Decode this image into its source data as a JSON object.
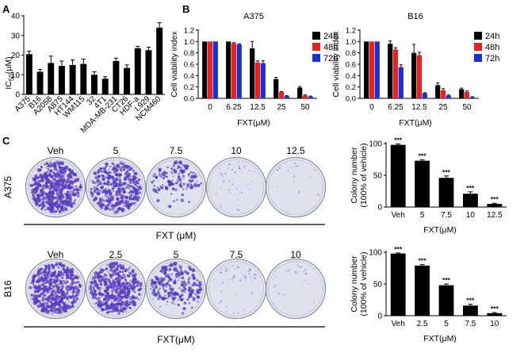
{
  "panel_labels": {
    "a": "A",
    "b": "B",
    "c": "C"
  },
  "chart_data": [
    {
      "id": "ic50",
      "type": "bar",
      "ylabel_main": "IC",
      "ylabel_sub": "50",
      "ylabel_rest": "(μM)",
      "ylim": [
        0,
        40
      ],
      "yticks": [
        "0",
        "10",
        "20",
        "30",
        "40"
      ],
      "categories": [
        "A375",
        "B16",
        "A2058",
        "A875",
        "HT144",
        "WM115",
        "32",
        "4T1",
        "MDA-MB-231",
        "CT26",
        "HDF-a",
        "L929",
        "NCM460"
      ],
      "values": [
        20.5,
        11.5,
        16,
        14.5,
        15,
        15.5,
        10,
        8,
        17,
        13.5,
        23.5,
        22.5,
        34
      ],
      "errors": [
        1.5,
        1.2,
        3.5,
        2.5,
        2.5,
        2.5,
        1.5,
        1,
        1.5,
        1.5,
        1,
        1.5,
        2.5
      ]
    },
    {
      "id": "a375-viability",
      "type": "bar",
      "title": "A375",
      "ylabel": "Cell viability index",
      "xlabel": "FXT(μM)",
      "ylim": [
        0,
        1.2
      ],
      "yticks": [
        "0.0",
        "0.2",
        "0.4",
        "0.6",
        "0.8",
        "1.0",
        "1.2"
      ],
      "categories": [
        "0",
        "6.25",
        "12.5",
        "25",
        "50"
      ],
      "series": [
        {
          "name": "24h",
          "values": [
            1.0,
            1.0,
            0.88,
            0.34,
            0.19
          ],
          "errors": [
            0,
            0,
            0.12,
            0.03,
            0.02
          ]
        },
        {
          "name": "48h",
          "values": [
            1.0,
            0.97,
            0.63,
            0.11,
            0.05
          ],
          "errors": [
            0,
            0.01,
            0.03,
            0.01,
            0.01
          ]
        },
        {
          "name": "72h",
          "values": [
            1.0,
            0.95,
            0.62,
            0.04,
            0.03
          ],
          "errors": [
            0,
            0.01,
            0.04,
            0.01,
            0.01
          ]
        }
      ]
    },
    {
      "id": "b16-viability",
      "type": "bar",
      "title": "B16",
      "ylabel": "Cell viability index",
      "xlabel": "FXT(μM)",
      "ylim": [
        0,
        1.2
      ],
      "yticks": [
        "0.0",
        "0.2",
        "0.4",
        "0.6",
        "0.8",
        "1.0",
        "1.2"
      ],
      "categories": [
        "0",
        "6.25",
        "12.5",
        "25",
        "50"
      ],
      "series": [
        {
          "name": "24h",
          "values": [
            1.0,
            0.96,
            0.8,
            0.23,
            0.16
          ],
          "errors": [
            0,
            0.05,
            0.15,
            0.04,
            0.02
          ]
        },
        {
          "name": "48h",
          "values": [
            1.0,
            0.86,
            0.76,
            0.14,
            0.11
          ],
          "errors": [
            0,
            0.03,
            0.05,
            0.03,
            0.02
          ]
        },
        {
          "name": "72h",
          "values": [
            1.0,
            0.55,
            0.09,
            0.05,
            0.02
          ],
          "errors": [
            0,
            0.04,
            0.01,
            0.01,
            0.01
          ]
        }
      ]
    },
    {
      "id": "a375-colony",
      "type": "bar",
      "ylabel_line1": "Colony number",
      "ylabel_line2": "(100% of vehicle)",
      "xlabel": "FXT(μM)",
      "ylim": [
        0,
        100
      ],
      "yticks": [
        "0",
        "50",
        "100"
      ],
      "categories": [
        "Veh",
        "5",
        "7.5",
        "10",
        "12.5"
      ],
      "values": [
        98,
        73,
        46,
        21,
        5
      ],
      "errors": [
        1.5,
        1.5,
        3,
        3,
        1
      ],
      "significance": [
        "***",
        "***",
        "***",
        "***",
        "***"
      ]
    },
    {
      "id": "b16-colony",
      "type": "bar",
      "ylabel_line1": "Colony number",
      "ylabel_line2": "(100% of vehicle)",
      "xlabel": "FXT(μM)",
      "ylim": [
        0,
        100
      ],
      "yticks": [
        "0",
        "50",
        "100"
      ],
      "categories": [
        "Veh",
        "2.5",
        "5",
        "7.5",
        "10"
      ],
      "values": [
        98,
        79,
        48,
        16,
        4
      ],
      "errors": [
        1,
        1.5,
        2,
        2,
        1
      ],
      "significance": [
        "***",
        "***",
        "***",
        "***",
        "***"
      ]
    }
  ],
  "plates": {
    "a375": {
      "row_label": "A375",
      "caption": "FXT (μM)",
      "labels": [
        "Veh",
        "5",
        "7.5",
        "10",
        "12.5"
      ],
      "density": [
        1.0,
        0.75,
        0.35,
        0.12,
        0.04
      ]
    },
    "b16": {
      "row_label": "B16",
      "caption": "FXT(μM)",
      "labels": [
        "Veh",
        "2.5",
        "5",
        "7.5",
        "10"
      ],
      "density": [
        1.0,
        0.85,
        0.5,
        0.18,
        0.05
      ]
    }
  },
  "colors": {
    "black": "#000000",
    "red": "#e8231f",
    "blue": "#1a2fd6",
    "colony": "#5a3fbf",
    "plate_bg": "#dfe1ef"
  }
}
